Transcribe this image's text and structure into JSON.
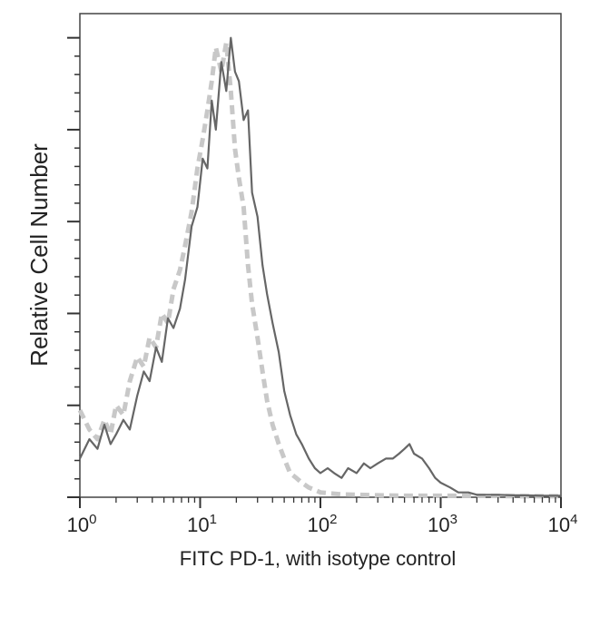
{
  "chart_data": {
    "type": "line",
    "title": "",
    "xlabel": "FITC PD-1, with isotype control",
    "ylabel": "Relative Cell Number",
    "x_scale": "log",
    "xlim": [
      1,
      10000
    ],
    "ylim": [
      0,
      100
    ],
    "x_ticks": [
      {
        "value": 1,
        "base": "10",
        "exp": "0"
      },
      {
        "value": 10,
        "base": "10",
        "exp": "1"
      },
      {
        "value": 100,
        "base": "10",
        "exp": "2"
      },
      {
        "value": 1000,
        "base": "10",
        "exp": "3"
      },
      {
        "value": 10000,
        "base": "10",
        "exp": "4"
      }
    ],
    "y_ticks": [
      0,
      19,
      38,
      57,
      76,
      95
    ],
    "grid": false,
    "series": [
      {
        "color": "#666666",
        "style": "solid",
        "x": [
          1.0,
          1.2,
          1.4,
          1.6,
          1.8,
          2.0,
          2.3,
          2.6,
          3.0,
          3.4,
          3.8,
          4.3,
          4.8,
          5.4,
          6.0,
          6.8,
          7.5,
          8.5,
          9.5,
          10.5,
          11.5,
          12.5,
          13.5,
          15.0,
          16.5,
          18.0,
          19.5,
          21.0,
          23.0,
          25.0,
          27.0,
          30.0,
          33.0,
          36.0,
          40.0,
          45.0,
          50.0,
          56.0,
          63.0,
          70.0,
          80.0,
          90.0,
          100.0,
          115.0,
          130.0,
          150.0,
          170.0,
          200.0,
          230.0,
          260.0,
          300.0,
          350.0,
          400.0,
          450.0,
          500.0,
          550.0,
          600.0,
          700.0,
          800.0,
          900.0,
          1000.0,
          1200.0,
          1400.0,
          1700.0,
          2000.0,
          2500.0,
          3000.0,
          4000.0,
          5000.0,
          7000.0,
          10000.0
        ],
        "y": [
          8,
          12,
          10,
          15,
          11,
          13,
          16,
          14,
          21,
          26,
          24,
          31,
          28,
          37,
          35,
          39,
          45,
          56,
          60,
          70,
          68,
          82,
          76,
          90,
          84,
          95,
          88,
          86,
          78,
          80,
          63,
          58,
          48,
          42,
          36,
          30,
          22,
          17,
          13,
          11,
          8,
          6,
          5,
          6,
          5,
          4,
          6,
          5,
          7,
          6,
          7,
          8,
          8,
          9,
          10,
          11,
          9,
          8,
          6,
          4,
          3,
          2,
          1,
          1,
          0.5,
          0.5,
          0.5,
          0.4,
          0.4,
          0.3,
          0.3
        ]
      },
      {
        "color": "#c8c8c8",
        "style": "dashed",
        "x": [
          1.0,
          1.2,
          1.4,
          1.6,
          1.8,
          2.0,
          2.3,
          2.6,
          3.0,
          3.4,
          3.8,
          4.3,
          4.8,
          5.4,
          6.0,
          6.8,
          7.5,
          8.5,
          9.5,
          10.5,
          11.5,
          12.5,
          13.5,
          15.0,
          16.5,
          18.0,
          19.5,
          21.0,
          23.0,
          25.0,
          27.0,
          30.0,
          33.0,
          36.0,
          40.0,
          45.0,
          50.0,
          56.0,
          63.0,
          70.0,
          80.0,
          90.0,
          100.0,
          120.0,
          150.0,
          200.0,
          300.0,
          500.0,
          1000.0,
          2000.0,
          5000.0,
          10000.0
        ],
        "y": [
          18,
          14,
          12,
          16,
          13,
          19,
          17,
          24,
          29,
          27,
          33,
          31,
          38,
          36,
          43,
          47,
          52,
          59,
          68,
          74,
          80,
          86,
          93,
          88,
          94,
          84,
          72,
          66,
          60,
          48,
          40,
          33,
          26,
          20,
          15,
          11,
          8,
          5,
          4,
          3,
          2,
          1.5,
          1,
          0.8,
          0.6,
          0.5,
          0.4,
          0.3,
          0.3,
          0.3,
          0.2,
          0.2
        ]
      }
    ]
  }
}
